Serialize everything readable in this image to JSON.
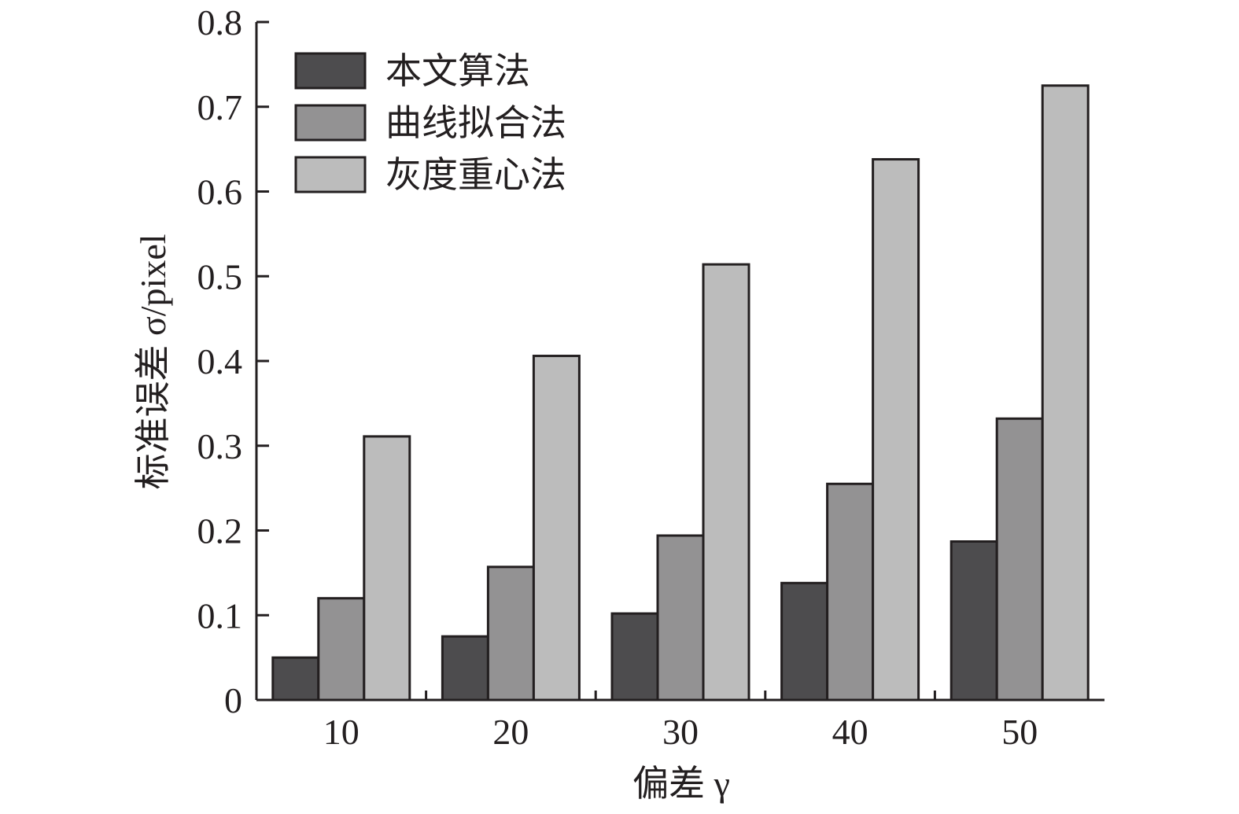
{
  "chart_data": {
    "type": "bar",
    "title": "",
    "xlabel": "偏差 γ",
    "ylabel": "标准误差 σ/pixel",
    "categories": [
      "10",
      "20",
      "30",
      "40",
      "50"
    ],
    "series": [
      {
        "name": "本文算法",
        "values": [
          0.05,
          0.075,
          0.102,
          0.138,
          0.187
        ]
      },
      {
        "name": "曲线拟合法",
        "values": [
          0.12,
          0.157,
          0.194,
          0.255,
          0.332
        ]
      },
      {
        "name": "灰度重心法",
        "values": [
          0.311,
          0.406,
          0.514,
          0.638,
          0.725
        ]
      }
    ],
    "ylim": [
      0,
      0.8
    ],
    "yticks": [
      "0",
      "0.1",
      "0.2",
      "0.3",
      "0.4",
      "0.5",
      "0.6",
      "0.7",
      "0.8"
    ],
    "grid": false,
    "legend_position": "top-left",
    "colors": [
      "#4d4c4e",
      "#939293",
      "#bcbcbc"
    ]
  }
}
